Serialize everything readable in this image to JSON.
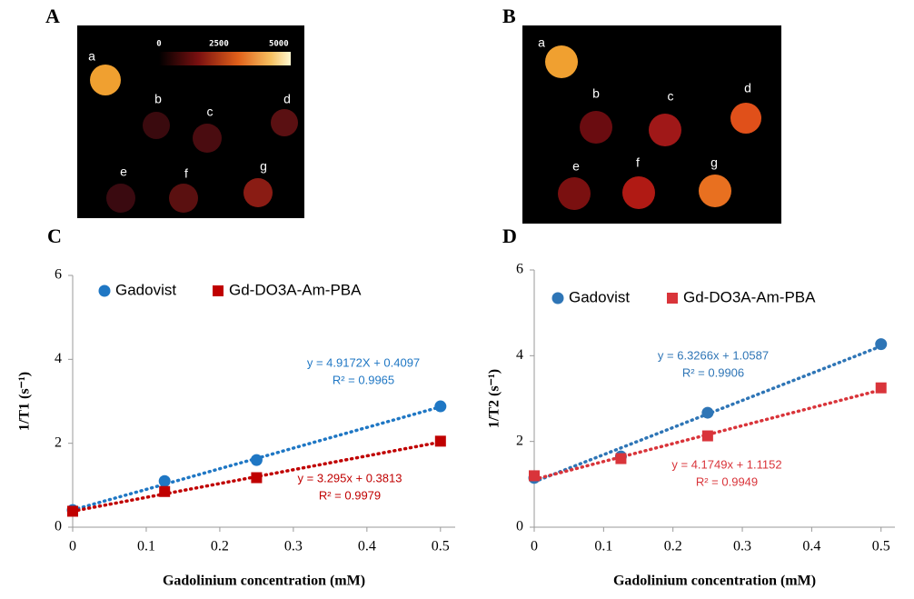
{
  "panel_labels": [
    "A",
    "B",
    "C",
    "D"
  ],
  "images": [
    {
      "labels": [
        "a",
        "b",
        "c",
        "d",
        "e",
        "f",
        "g"
      ],
      "colorbar": {
        "lim": [
          0,
          5500
        ],
        "ticks": [
          0,
          2500,
          5000
        ]
      }
    },
    {
      "labels": [
        "a",
        "b",
        "c",
        "d",
        "e",
        "f",
        "g"
      ]
    }
  ],
  "chart_data": [
    {
      "type": "scatter",
      "x_label": "Gadolinium concentration (mM)",
      "y_label": "1/T1 (s⁻¹)",
      "x": [
        0,
        0.125,
        0.25,
        0.5
      ],
      "xlim": [
        0,
        0.52
      ],
      "ylim": [
        0,
        6
      ],
      "xticks": [
        0,
        0.1,
        0.2,
        0.3,
        0.4,
        0.5
      ],
      "yticks": [
        0,
        2,
        4,
        6
      ],
      "series": [
        {
          "name": "Gadovist",
          "color": "#1f77c4",
          "marker": "circle",
          "values": [
            0.41,
            1.1,
            1.6,
            2.88
          ],
          "trendline": {
            "slope": 4.9172,
            "intercept": 0.4097,
            "equation": "y = 4.9172X + 0.4097",
            "r2": "R² = 0.9965"
          }
        },
        {
          "name": "Gd-DO3A-Am-PBA",
          "color": "#c00000",
          "marker": "square",
          "values": [
            0.38,
            0.85,
            1.18,
            2.05
          ],
          "trendline": {
            "slope": 3.295,
            "intercept": 0.3813,
            "equation": "y = 3.295x + 0.3813",
            "r2": "R² = 0.9979"
          }
        }
      ]
    },
    {
      "type": "scatter",
      "x_label": "Gadolinium concentration (mM)",
      "y_label": "1/T2 (s⁻¹)",
      "x": [
        0,
        0.125,
        0.25,
        0.5
      ],
      "xlim": [
        0,
        0.52
      ],
      "ylim": [
        0,
        6
      ],
      "xticks": [
        0,
        0.1,
        0.2,
        0.3,
        0.4,
        0.5
      ],
      "yticks": [
        0,
        2,
        4,
        6
      ],
      "series": [
        {
          "name": "Gadovist",
          "color": "#2e75b6",
          "marker": "circle",
          "values": [
            1.15,
            1.65,
            2.67,
            4.27
          ],
          "trendline": {
            "slope": 6.3266,
            "intercept": 1.0587,
            "equation": "y = 6.3266x + 1.0587",
            "r2": "R² = 0.9906"
          }
        },
        {
          "name": "Gd-DO3A-Am-PBA",
          "color": "#d9343a",
          "marker": "square",
          "values": [
            1.2,
            1.6,
            2.13,
            3.25
          ],
          "trendline": {
            "slope": 4.1749,
            "intercept": 1.1152,
            "equation": "y = 4.1749x + 1.1152",
            "r2": "R² = 0.9949"
          }
        }
      ]
    }
  ]
}
